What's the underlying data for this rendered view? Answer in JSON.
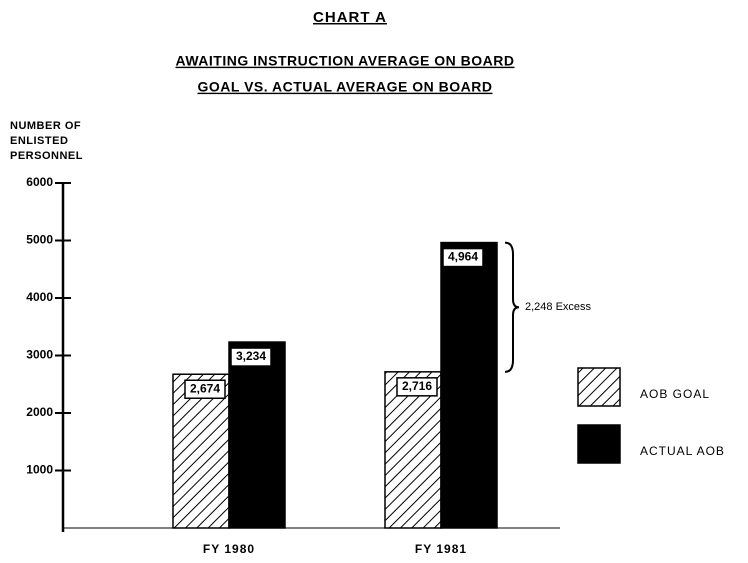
{
  "chart_data": {
    "type": "bar",
    "title": "CHART A",
    "subtitle": [
      "AWAITING INSTRUCTION AVERAGE ON BOARD",
      "GOAL VS. ACTUAL AVERAGE ON BOARD"
    ],
    "y_label": [
      "NUMBER OF",
      "ENLISTED",
      "PERSONNEL"
    ],
    "categories": [
      "FY 1980",
      "FY 1981"
    ],
    "series": [
      {
        "name": "AOB GOAL",
        "color": "#000000",
        "pattern": "hatch",
        "values": [
          2674,
          2716
        ],
        "value_labels": [
          "2,674",
          "2,716"
        ]
      },
      {
        "name": "ACTUAL AOB",
        "color": "#000000",
        "values": [
          3234,
          4964
        ],
        "value_labels": [
          "3,234",
          "4,964"
        ]
      }
    ],
    "annotation": "2,248 Excess",
    "ylim": [
      0,
      6000
    ],
    "yticks": [
      1000,
      2000,
      3000,
      4000,
      5000,
      6000
    ],
    "legend": "right"
  }
}
